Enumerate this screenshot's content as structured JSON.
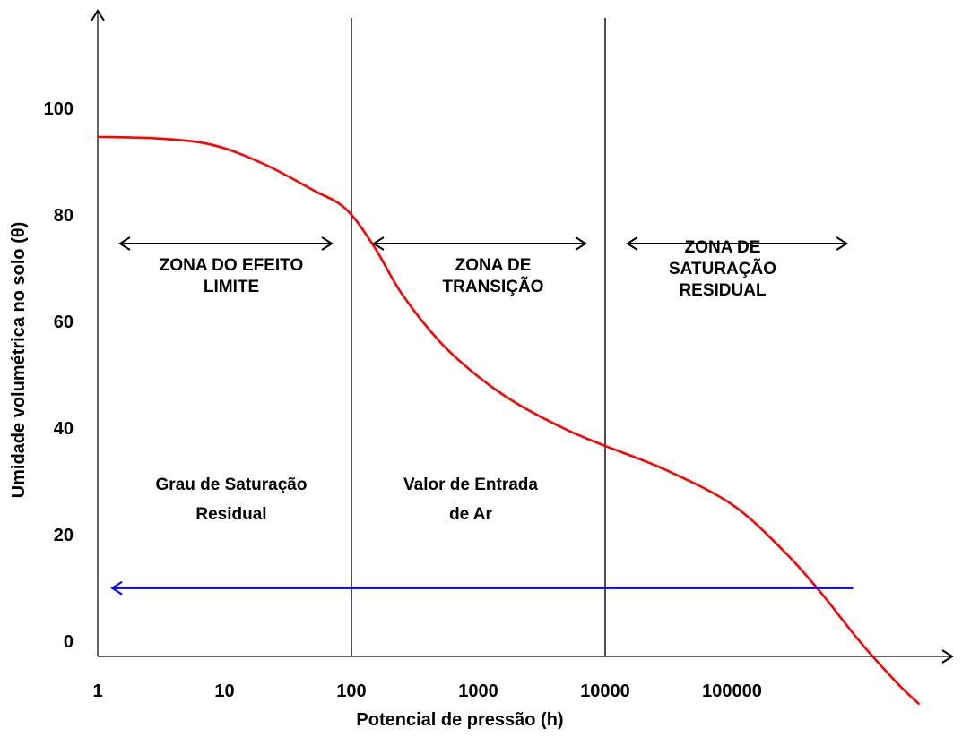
{
  "chart_data": {
    "type": "line",
    "xlabel": "Potencial de pressão (h)",
    "ylabel": "Umidade volumétrica no solo (θ)",
    "x_scale": "log",
    "xlim": [
      1,
      10000000
    ],
    "ylim": [
      0,
      112
    ],
    "x_ticks": [
      "1",
      "10",
      "100",
      "1000",
      "10000",
      "100000"
    ],
    "y_ticks": [
      "0",
      "20",
      "40",
      "60",
      "80",
      "100"
    ],
    "colors": {
      "curve": "#ff0000",
      "residual_arrow": "#0000ff",
      "zone_arrows": "#000000",
      "boundaries": "#000000"
    },
    "series": [
      {
        "color": "#ff0000",
        "x": [
          1,
          3,
          8,
          20,
          50,
          90,
          150,
          250,
          500,
          1000,
          2000,
          5000,
          10000,
          30000,
          100000,
          250000,
          500000,
          1000000,
          2000000,
          3000000
        ],
        "y": [
          97.5,
          97.2,
          96,
          92.5,
          87.5,
          84,
          77,
          68,
          59,
          52.5,
          47.5,
          42.5,
          39.5,
          35,
          28.5,
          20,
          12,
          3,
          -5,
          -9
        ]
      }
    ],
    "zone_boundaries_x": [
      100,
      10000
    ],
    "zones": [
      {
        "label_lines": [
          "ZONA DO EFEITO",
          "LIMITE"
        ],
        "note_lines": [
          "Grau de Saturação",
          "Residual"
        ]
      },
      {
        "label_lines": [
          "ZONA DE",
          "TRANSIÇÃO"
        ],
        "note_lines": [
          "Valor de Entrada",
          "de Ar"
        ]
      },
      {
        "label_lines": [
          "ZONA DE",
          "SATURAÇÃO",
          "RESIDUAL"
        ],
        "note_lines": []
      }
    ],
    "zone_arrows": [
      {
        "x": [
          1.5,
          70
        ],
        "y": 80
      },
      {
        "x": [
          150,
          7000
        ],
        "y": 80
      },
      {
        "x": [
          15000,
          800000
        ],
        "y": 80
      }
    ],
    "residual_arrow": {
      "x_from": 900000,
      "x_to": 1.3,
      "y": 14.5
    }
  }
}
